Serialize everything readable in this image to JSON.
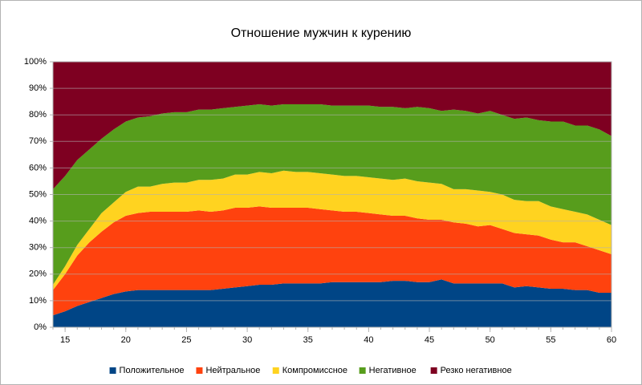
{
  "chart_data": {
    "type": "stacked-area",
    "title": "Отношение мужчин к курению",
    "x": [
      14,
      15,
      16,
      17,
      18,
      19,
      20,
      21,
      22,
      23,
      24,
      25,
      26,
      27,
      28,
      29,
      30,
      31,
      32,
      33,
      34,
      35,
      36,
      37,
      38,
      39,
      40,
      41,
      42,
      43,
      44,
      45,
      46,
      47,
      48,
      49,
      50,
      51,
      52,
      53,
      54,
      55,
      56,
      57,
      58,
      59,
      60
    ],
    "xlim": [
      14,
      60
    ],
    "xticks": [
      15,
      20,
      25,
      30,
      35,
      40,
      45,
      50,
      55,
      60
    ],
    "ylim": [
      0,
      100
    ],
    "yticks": [
      {
        "value": 0,
        "label": "0%"
      },
      {
        "value": 10,
        "label": "10%"
      },
      {
        "value": 20,
        "label": "20%"
      },
      {
        "value": 30,
        "label": "30%"
      },
      {
        "value": 40,
        "label": "40%"
      },
      {
        "value": 50,
        "label": "50%"
      },
      {
        "value": 60,
        "label": "60%"
      },
      {
        "value": 70,
        "label": "70%"
      },
      {
        "value": 80,
        "label": "80%"
      },
      {
        "value": 90,
        "label": "90%"
      },
      {
        "value": 100,
        "label": "100%"
      }
    ],
    "grid": true,
    "legend": "bottom",
    "series": [
      {
        "name": "Положительное",
        "color": "#004586",
        "values": [
          4.5,
          6,
          8,
          9.5,
          11,
          12.5,
          13.5,
          14,
          14,
          14,
          14,
          14,
          14,
          14,
          14.5,
          15,
          15.5,
          16,
          16,
          16.5,
          16.5,
          16.5,
          16.5,
          17,
          17,
          17,
          17,
          17,
          17.5,
          17.5,
          17,
          17,
          18,
          16.5,
          16.5,
          16.5,
          16.5,
          16.5,
          15,
          15.5,
          15,
          14.5,
          14.5,
          14,
          14,
          13,
          13
        ]
      },
      {
        "name": "Нейтральное",
        "color": "#ff420e",
        "values": [
          9.5,
          14,
          19,
          22.5,
          25,
          27,
          28.5,
          29,
          29.5,
          29.5,
          29.5,
          29.5,
          30,
          29.5,
          29.5,
          30,
          29.5,
          29.5,
          29,
          28.5,
          28.5,
          28.5,
          28,
          27,
          26.5,
          26.5,
          26,
          25.5,
          24.5,
          24.5,
          24,
          23.5,
          22.5,
          23,
          22.5,
          21.5,
          22,
          20.5,
          20.5,
          19.5,
          19.5,
          18.5,
          17.5,
          18,
          16.5,
          16,
          14.5
        ]
      },
      {
        "name": "Компромиссное",
        "color": "#ffd320",
        "values": [
          2,
          3,
          4,
          5,
          7,
          7.5,
          9,
          10,
          9.5,
          10.5,
          11,
          11,
          11.5,
          12,
          12,
          12.5,
          12.5,
          13,
          13,
          14,
          13.5,
          13.5,
          13.5,
          13.5,
          13.5,
          13.5,
          13.5,
          13.5,
          13.5,
          14,
          14,
          14,
          13.5,
          12.5,
          13,
          13.5,
          12.5,
          13,
          12.5,
          12.5,
          13,
          12.5,
          12.5,
          11.5,
          12,
          11.5,
          11
        ]
      },
      {
        "name": "Негативное",
        "color": "#579d1c",
        "values": [
          36,
          34,
          32,
          30,
          28,
          27.5,
          26.5,
          26,
          26.5,
          26.5,
          26.5,
          26.5,
          26.5,
          26.5,
          26.5,
          25.5,
          26,
          25.5,
          25.5,
          25,
          25.5,
          25.5,
          26,
          26,
          26.5,
          26.5,
          27,
          27,
          27.5,
          26.5,
          28,
          28,
          27.5,
          30,
          29.5,
          29,
          30.5,
          30,
          30.5,
          31.5,
          30.5,
          32,
          33,
          32.5,
          33.5,
          34,
          33.5
        ]
      },
      {
        "name": "Резко негативное",
        "color": "#7e0021",
        "values": [
          48,
          43,
          37,
          33,
          29,
          25.5,
          22.5,
          21,
          20.5,
          19.5,
          19,
          19,
          18,
          18,
          17.5,
          17,
          16.5,
          16,
          16.5,
          16,
          16,
          16,
          16,
          16.5,
          16.5,
          16.5,
          16.5,
          17,
          17,
          17.5,
          17,
          17.5,
          18.5,
          18,
          18.5,
          19.5,
          18.5,
          20,
          21.5,
          21,
          22,
          22.5,
          22.5,
          24,
          24,
          25.5,
          28
        ]
      }
    ]
  }
}
